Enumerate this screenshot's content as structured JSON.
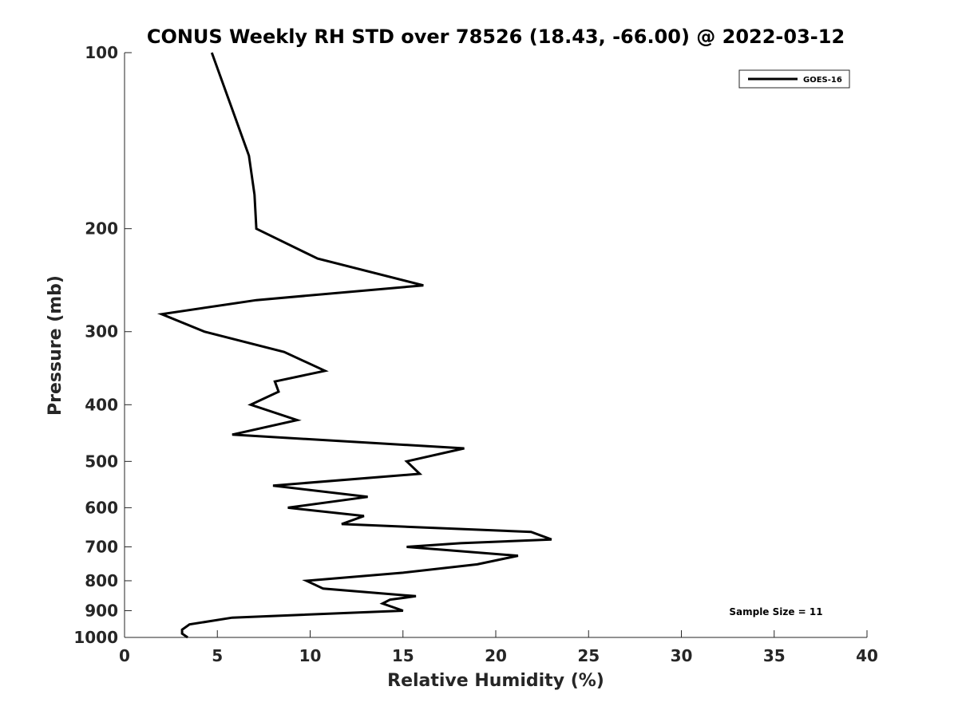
{
  "chart_data": {
    "type": "line",
    "title": "CONUS Weekly RH STD over 78526 (18.43, -66.00) @ 2022-03-12",
    "xlabel": "Relative Humidity (%)",
    "ylabel": "Pressure (mb)",
    "xlim": [
      0,
      40
    ],
    "ylim": [
      100,
      1000
    ],
    "y_scale": "log",
    "y_reversed": true,
    "x_ticks": [
      0,
      5,
      10,
      15,
      20,
      25,
      30,
      35,
      40
    ],
    "y_ticks": [
      100,
      200,
      300,
      400,
      500,
      600,
      700,
      800,
      900,
      1000
    ],
    "legend": {
      "location": "top-right",
      "entries": [
        "GOES-16"
      ]
    },
    "annotation": "Sample Size = 11",
    "series": [
      {
        "name": "GOES-16",
        "color": "#000000",
        "points": [
          [
            4.7,
            100
          ],
          [
            5.8,
            125
          ],
          [
            6.7,
            150
          ],
          [
            7.0,
            175
          ],
          [
            7.1,
            200
          ],
          [
            10.4,
            225
          ],
          [
            16.1,
            250
          ],
          [
            7.1,
            265
          ],
          [
            2.0,
            280
          ],
          [
            4.3,
            300
          ],
          [
            8.6,
            325
          ],
          [
            10.8,
            350
          ],
          [
            8.1,
            365
          ],
          [
            8.3,
            380
          ],
          [
            6.8,
            400
          ],
          [
            9.3,
            425
          ],
          [
            5.8,
            450
          ],
          [
            18.3,
            475
          ],
          [
            15.2,
            500
          ],
          [
            15.9,
            525
          ],
          [
            8.0,
            550
          ],
          [
            13.1,
            575
          ],
          [
            8.8,
            600
          ],
          [
            12.9,
            620
          ],
          [
            11.7,
            640
          ],
          [
            21.9,
            660
          ],
          [
            23.0,
            680
          ],
          [
            18.1,
            690
          ],
          [
            15.2,
            700
          ],
          [
            21.2,
            725
          ],
          [
            19.0,
            750
          ],
          [
            15.0,
            775
          ],
          [
            9.8,
            800
          ],
          [
            10.7,
            825
          ],
          [
            15.7,
            850
          ],
          [
            14.3,
            862
          ],
          [
            13.9,
            875
          ],
          [
            15.0,
            900
          ],
          [
            5.8,
            925
          ],
          [
            3.5,
            950
          ],
          [
            3.1,
            970
          ],
          [
            3.1,
            985
          ],
          [
            3.4,
            1000
          ]
        ]
      }
    ]
  }
}
